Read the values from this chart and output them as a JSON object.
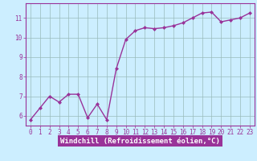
{
  "x": [
    0,
    1,
    2,
    3,
    4,
    5,
    6,
    7,
    8,
    9,
    10,
    11,
    12,
    13,
    14,
    15,
    16,
    17,
    18,
    19,
    20,
    21,
    22,
    23
  ],
  "y": [
    5.8,
    6.4,
    7.0,
    6.7,
    7.1,
    7.1,
    5.9,
    6.6,
    5.8,
    8.4,
    9.9,
    10.35,
    10.5,
    10.45,
    10.5,
    10.6,
    10.75,
    11.0,
    11.25,
    11.3,
    10.8,
    10.9,
    11.0,
    11.25
  ],
  "line_color": "#993399",
  "marker": "D",
  "marker_size": 2.0,
  "bg_color": "#cceeff",
  "grid_color": "#99bbbb",
  "xlabel": "Windchill (Refroidissement éolien,°C)",
  "xlabel_bg": "#993399",
  "xlabel_fg": "#ffffff",
  "xlim": [
    -0.5,
    23.5
  ],
  "ylim": [
    5.5,
    11.75
  ],
  "yticks": [
    6,
    7,
    8,
    9,
    10,
    11
  ],
  "xticks": [
    0,
    1,
    2,
    3,
    4,
    5,
    6,
    7,
    8,
    9,
    10,
    11,
    12,
    13,
    14,
    15,
    16,
    17,
    18,
    19,
    20,
    21,
    22,
    23
  ],
  "tick_fontsize": 5.5,
  "xlabel_fontsize": 6.5,
  "line_width": 1.0
}
